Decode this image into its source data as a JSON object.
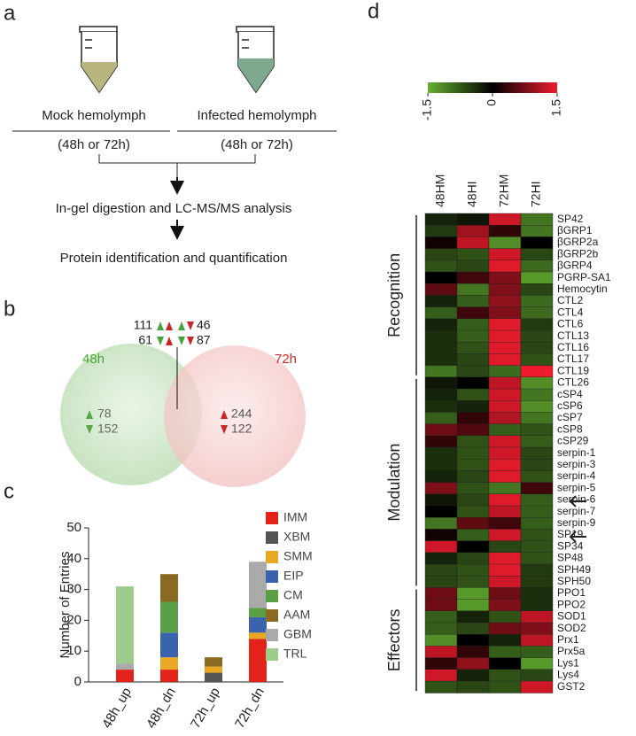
{
  "panels": [
    "a",
    "b",
    "c",
    "d"
  ],
  "workflow": {
    "mock": "Mock hemolymph",
    "infected": "Infected hemolymph",
    "mock_time": "(48h or 72h)",
    "infected_time": "(48h or 72h)",
    "step1": "In-gel digestion and LC-MS/MS analysis",
    "step2": "Protein identification and quantification"
  },
  "venn": {
    "left_label": "48h",
    "right_label": "72h",
    "shared_up_up": 111,
    "shared_down_up": 61,
    "shared_up_down": 46,
    "shared_down_down": 87,
    "left_up": 78,
    "left_down": 152,
    "right_up": 244,
    "right_down": 122
  },
  "chart_data": [
    {
      "type": "stacked_bar",
      "ylabel": "Number of Entries",
      "categories": [
        "48h_up",
        "48h_dn",
        "72h_up",
        "72h_dn"
      ],
      "ylim": [
        0,
        50
      ],
      "yticks": [
        0,
        10,
        20,
        30,
        40,
        50
      ],
      "series": [
        {
          "name": "IMM",
          "color": "#e32219",
          "values": [
            4,
            4,
            0,
            14
          ]
        },
        {
          "name": "XBM",
          "color": "#555555",
          "values": [
            0,
            0,
            3,
            0
          ]
        },
        {
          "name": "SMM",
          "color": "#e8a823",
          "values": [
            0,
            4,
            2,
            2
          ]
        },
        {
          "name": "EIP",
          "color": "#3a62ad",
          "values": [
            0,
            8,
            0,
            5
          ]
        },
        {
          "name": "CM",
          "color": "#5a9e45",
          "values": [
            0,
            10,
            0,
            3
          ]
        },
        {
          "name": "AAM",
          "color": "#8a6a22",
          "values": [
            0,
            9,
            3,
            0
          ]
        },
        {
          "name": "GBM",
          "color": "#aaaaaa",
          "values": [
            2,
            0,
            0,
            15
          ]
        },
        {
          "name": "TRL",
          "color": "#9ccc8a",
          "values": [
            25,
            0,
            0,
            0
          ]
        }
      ]
    },
    {
      "type": "heatmap",
      "columns": [
        "48HM",
        "48HI",
        "72HM",
        "72HI"
      ],
      "zlim": [
        -1.5,
        1.5
      ],
      "zticks": [
        -1.5,
        0,
        1.5
      ],
      "colors": [
        "#66b032",
        "#000000",
        "#ee1c2e"
      ],
      "groups": [
        {
          "name": "Recognition",
          "rows": [
            {
              "label": "SP42",
              "values": [
                -0.3,
                -0.2,
                1.3,
                -1.0
              ]
            },
            {
              "label": "βGRP1",
              "values": [
                -0.5,
                1.0,
                0.3,
                -1.0
              ]
            },
            {
              "label": "βGRP2a",
              "values": [
                0.1,
                1.2,
                -1.2,
                0
              ]
            },
            {
              "label": "βGRP2b",
              "values": [
                -0.6,
                -0.7,
                1.3,
                -0.6
              ]
            },
            {
              "label": "βGRP4",
              "values": [
                -0.7,
                -0.6,
                1.4,
                -0.9
              ]
            },
            {
              "label": "PGRP-SA1",
              "values": [
                0,
                0.4,
                0.8,
                -1.3
              ]
            },
            {
              "label": "Hemocytin",
              "values": [
                0.6,
                -1.0,
                0.8,
                -0.6
              ]
            },
            {
              "label": "CTL2",
              "values": [
                -0.3,
                -0.8,
                0.9,
                -0.9
              ]
            },
            {
              "label": "CTL4",
              "values": [
                -0.8,
                0.4,
                0.8,
                -0.9
              ]
            },
            {
              "label": "CTL6",
              "values": [
                -0.3,
                -0.8,
                1.4,
                -0.5
              ]
            },
            {
              "label": "CTL13",
              "values": [
                -0.4,
                -0.8,
                1.4,
                -0.6
              ]
            },
            {
              "label": "CTL16",
              "values": [
                -0.4,
                -0.7,
                1.4,
                -0.6
              ]
            },
            {
              "label": "CTL17",
              "values": [
                -0.4,
                -0.6,
                1.4,
                -0.7
              ]
            },
            {
              "label": "CTL19",
              "values": [
                -1.0,
                -0.6,
                -0.9,
                1.5
              ]
            }
          ]
        },
        {
          "name": "Modulation",
          "rows": [
            {
              "label": "CTL26",
              "values": [
                -0.2,
                0,
                1.2,
                -1.2
              ]
            },
            {
              "label": "cSP4",
              "values": [
                -0.3,
                -0.7,
                1.3,
                -1.0
              ]
            },
            {
              "label": "cSP6",
              "values": [
                -0.4,
                -0.3,
                1.3,
                -1.2
              ]
            },
            {
              "label": "cSP7",
              "values": [
                -0.8,
                0.3,
                1.1,
                -1.0
              ]
            },
            {
              "label": "cSP8",
              "values": [
                0.7,
                0.5,
                -0.8,
                -0.7
              ]
            },
            {
              "label": "cSP29",
              "values": [
                0.3,
                -0.7,
                1.3,
                -0.8
              ]
            },
            {
              "label": "serpin-1",
              "values": [
                -0.4,
                -0.7,
                1.3,
                -0.6
              ]
            },
            {
              "label": "serpin-3",
              "values": [
                -0.4,
                -0.7,
                1.4,
                -0.6
              ]
            },
            {
              "label": "serpin-4",
              "values": [
                -0.3,
                -0.6,
                1.4,
                -0.7
              ]
            },
            {
              "label": "serpin-5",
              "values": [
                0.8,
                -0.7,
                -1.0,
                0.4
              ]
            },
            {
              "label": "serpin-6",
              "values": [
                -0.2,
                -0.6,
                1.4,
                -0.8
              ]
            },
            {
              "label": "serpin-7",
              "values": [
                0,
                -0.7,
                1.2,
                -0.8
              ]
            },
            {
              "label": "serpin-9",
              "values": [
                -1.0,
                0.6,
                0.4,
                -0.8
              ]
            },
            {
              "label": "SP19",
              "values": [
                0.1,
                -0.8,
                1.3,
                -0.7
              ]
            },
            {
              "label": "SP34",
              "values": [
                1.3,
                0,
                -0.6,
                -0.7
              ]
            },
            {
              "label": "SP48",
              "values": [
                -0.3,
                -0.6,
                1.4,
                -0.7
              ]
            },
            {
              "label": "SPH49",
              "values": [
                -0.6,
                -0.7,
                1.4,
                -0.5
              ]
            },
            {
              "label": "SPH50",
              "values": [
                -0.6,
                -0.7,
                1.3,
                -0.5
              ]
            }
          ]
        },
        {
          "name": "Effectors",
          "rows": [
            {
              "label": "PPO1",
              "values": [
                0.7,
                -1.3,
                0.7,
                -0.4
              ]
            },
            {
              "label": "PPO2",
              "values": [
                0.7,
                -1.3,
                0.8,
                -0.4
              ]
            },
            {
              "label": "SOD1",
              "values": [
                -0.8,
                -0.3,
                -0.7,
                1.2
              ]
            },
            {
              "label": "SOD2",
              "values": [
                -0.8,
                -0.6,
                0.7,
                0.8
              ]
            },
            {
              "label": "Prx1",
              "values": [
                -1.2,
                0,
                -0.3,
                1.2
              ]
            },
            {
              "label": "Prx5a",
              "values": [
                1.2,
                0.3,
                -0.8,
                -0.8
              ]
            },
            {
              "label": "Lys1",
              "values": [
                0.3,
                0.9,
                0,
                -1.3
              ]
            },
            {
              "label": "Lys4",
              "values": [
                1.3,
                -0.3,
                -0.7,
                -0.6
              ]
            },
            {
              "label": "GST2",
              "values": [
                -0.7,
                -0.6,
                -0.7,
                1.3
              ]
            }
          ]
        }
      ]
    }
  ]
}
